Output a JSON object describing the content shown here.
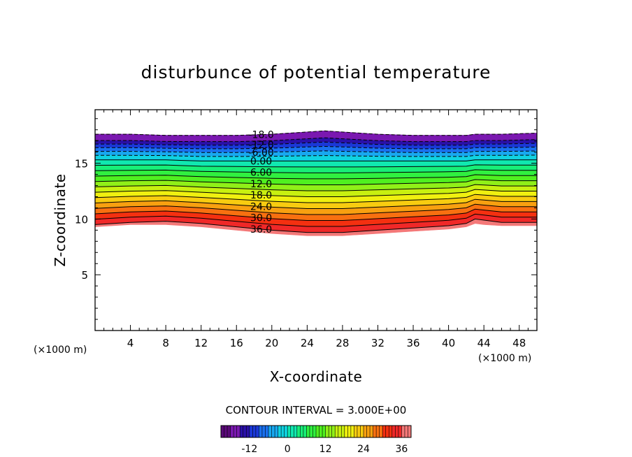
{
  "chart_data": {
    "type": "heatmap",
    "title": "disturbunce of potential temperature",
    "xlabel": "X-coordinate",
    "ylabel": "Z-coordinate",
    "x_unit": "(×1000 m)",
    "y_unit": "(×1000 m)",
    "xlim": [
      0,
      50
    ],
    "ylim": [
      0,
      19.8
    ],
    "x_ticks": [
      4,
      8,
      12,
      16,
      20,
      24,
      28,
      32,
      36,
      40,
      44,
      48
    ],
    "y_ticks": [
      5,
      10,
      15
    ],
    "contour_interval_text": "CONTOUR INTERVAL = 3.000E+00",
    "contour_interval": 3.0,
    "levels": {
      "min": -18,
      "max": 36,
      "step": 3
    },
    "contour_labels": [
      "-18.0",
      "-12.0",
      "-6.00",
      "0.00",
      "6.00",
      "12.0",
      "18.0",
      "24.0",
      "30.0",
      "36.0"
    ],
    "contour_label_values": [
      -18,
      -12,
      -6,
      0,
      6,
      12,
      18,
      24,
      30,
      36
    ],
    "contour_label_x": 18.8,
    "negative_contours_style": "dashed",
    "positive_contours_style": "solid",
    "field_band": {
      "x": [
        0,
        4,
        8,
        12,
        16,
        20,
        24,
        26,
        28,
        32,
        36,
        40,
        42,
        43,
        44,
        46,
        50
      ],
      "top_z": [
        17.6,
        17.6,
        17.5,
        17.5,
        17.5,
        17.6,
        17.8,
        17.9,
        17.8,
        17.6,
        17.5,
        17.5,
        17.5,
        17.6,
        17.6,
        17.6,
        17.7
      ],
      "bottom_z": [
        9.3,
        9.5,
        9.5,
        9.3,
        9.0,
        8.7,
        8.5,
        8.5,
        8.5,
        8.7,
        8.9,
        9.1,
        9.3,
        9.6,
        9.5,
        9.4,
        9.4
      ],
      "level_36_z": [
        9.5,
        9.7,
        9.8,
        9.6,
        9.3,
        9.0,
        8.8,
        8.8,
        8.8,
        9.0,
        9.2,
        9.4,
        9.6,
        10.0,
        9.9,
        9.7,
        9.7
      ],
      "level_0_z": [
        15.3,
        15.3,
        15.3,
        15.2,
        15.2,
        15.2,
        15.2,
        15.2,
        15.2,
        15.2,
        15.2,
        15.2,
        15.2,
        15.3,
        15.3,
        15.3,
        15.3
      ]
    },
    "colorbar": {
      "tick_labels": [
        "-12",
        "0",
        "12",
        "24",
        "36"
      ],
      "tick_values": [
        -12,
        0,
        12,
        24,
        36
      ],
      "range": [
        -21,
        39
      ]
    },
    "colors": {
      "-21": "#5a0a78",
      "-18": "#7a18b0",
      "-15": "#2a10a8",
      "-12": "#1a38d8",
      "-9": "#1a70ee",
      "-6": "#18a8f0",
      "-3": "#10d2e0",
      "0": "#10e8b0",
      "3": "#18ee78",
      "6": "#30f040",
      "9": "#50f020",
      "12": "#90f018",
      "15": "#c8f010",
      "18": "#f0f010",
      "21": "#f8cc10",
      "24": "#f8a010",
      "27": "#f87010",
      "30": "#f43010",
      "33": "#f02828",
      "36": "#f47878",
      "39": "#f8b0b0"
    }
  }
}
